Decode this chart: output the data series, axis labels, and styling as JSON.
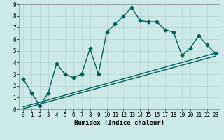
{
  "xlabel": "Humidex (Indice chaleur)",
  "xlim": [
    -0.5,
    23.5
  ],
  "ylim": [
    0,
    9
  ],
  "xticks": [
    0,
    1,
    2,
    3,
    4,
    5,
    6,
    7,
    8,
    9,
    10,
    11,
    12,
    13,
    14,
    15,
    16,
    17,
    18,
    19,
    20,
    21,
    22,
    23
  ],
  "yticks": [
    0,
    1,
    2,
    3,
    4,
    5,
    6,
    7,
    8,
    9
  ],
  "bg_color": "#cce8e8",
  "line_color": "#006060",
  "line1_x": [
    0,
    1,
    2,
    3,
    4,
    5,
    6,
    7,
    8,
    9,
    10,
    11,
    12,
    13,
    14,
    15,
    16,
    17,
    18,
    19,
    20,
    21,
    22,
    23
  ],
  "line1_y": [
    2.6,
    1.4,
    0.3,
    1.4,
    3.9,
    3.0,
    2.7,
    3.0,
    5.2,
    3.0,
    6.6,
    7.3,
    8.0,
    8.7,
    7.6,
    7.5,
    7.5,
    6.8,
    6.6,
    4.6,
    5.2,
    6.3,
    5.5,
    4.8
  ],
  "line2_x": [
    0,
    23
  ],
  "line2_y": [
    0.2,
    4.8
  ],
  "line3_x": [
    0,
    23
  ],
  "line3_y": [
    0.05,
    4.55
  ],
  "marker": "D",
  "markersize": 2.5,
  "linewidth": 1.0,
  "tick_fontsize": 5.5,
  "xlabel_fontsize": 6.5
}
